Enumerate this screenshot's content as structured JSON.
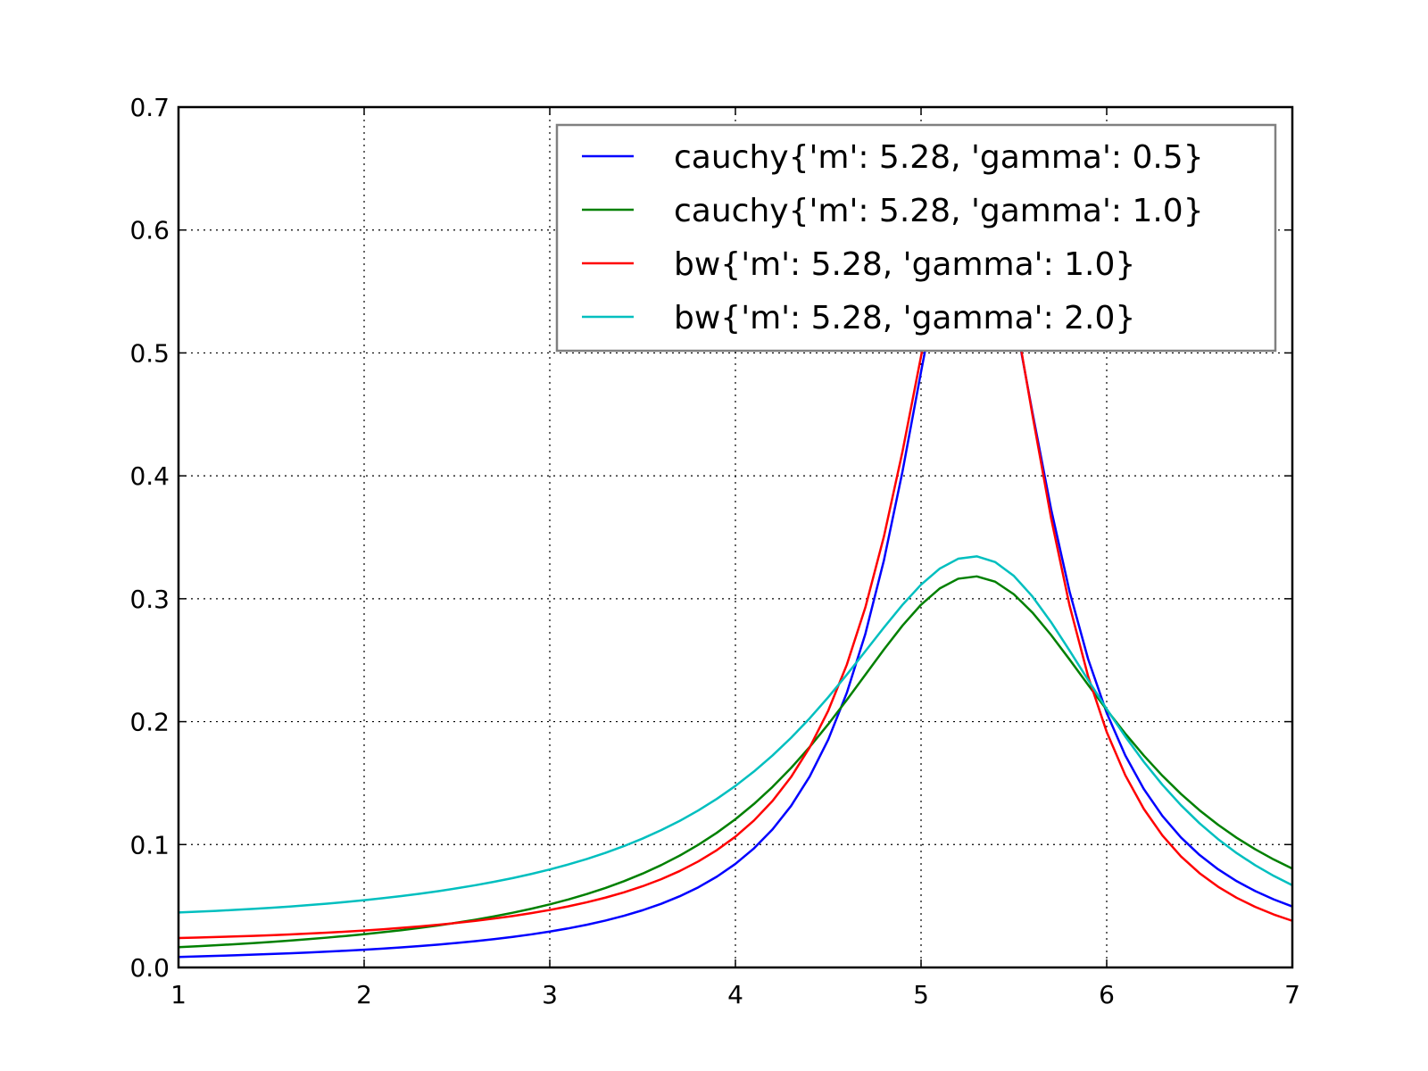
{
  "chart_data": {
    "type": "line",
    "title": "",
    "xlabel": "",
    "ylabel": "",
    "xlim": [
      1,
      7
    ],
    "ylim": [
      0,
      0.7
    ],
    "x_ticks": [
      "1",
      "2",
      "3",
      "4",
      "5",
      "6",
      "7"
    ],
    "y_ticks": [
      "0.0",
      "0.1",
      "0.2",
      "0.3",
      "0.4",
      "0.5",
      "0.6",
      "0.7"
    ],
    "grid": true,
    "legend_position": "top-right",
    "x_sampling": {
      "start": 1,
      "end": 7,
      "points": 61
    },
    "series": [
      {
        "name": "cauchy{'m': 5.28, 'gamma': 0.5}",
        "color": "#0000ff",
        "family": "cauchy",
        "params": {
          "m": 5.28,
          "gamma": 0.5
        }
      },
      {
        "name": "cauchy{'m': 5.28, 'gamma': 1.0}",
        "color": "#008000",
        "family": "cauchy",
        "params": {
          "m": 5.28,
          "gamma": 1.0
        }
      },
      {
        "name": "bw{'m': 5.28, 'gamma': 1.0}",
        "color": "#ff0000",
        "family": "bw",
        "params": {
          "m": 5.28,
          "gamma": 1.0
        }
      },
      {
        "name": "bw{'m': 5.28, 'gamma': 2.0}",
        "color": "#00bfbf",
        "family": "bw",
        "params": {
          "m": 5.28,
          "gamma": 2.0
        }
      }
    ]
  }
}
